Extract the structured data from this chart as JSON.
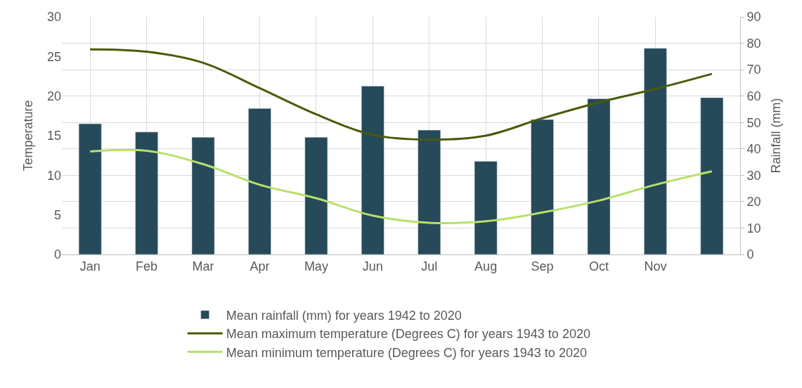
{
  "chart_data": {
    "type": "bar",
    "categories": [
      "Jan",
      "Feb",
      "Mar",
      "Apr",
      "May",
      "Jun",
      "Jul",
      "Aug",
      "Sep",
      "Oct",
      "Nov",
      null
    ],
    "ylabel": "Temperature",
    "y2label": "Rainfall (mm)",
    "ylim": [
      0,
      30
    ],
    "yticks": [
      0,
      5,
      10,
      15,
      20,
      25,
      30
    ],
    "y2lim": [
      0,
      90
    ],
    "y2ticks": [
      0,
      10,
      20,
      30,
      40,
      50,
      60,
      70,
      80,
      90
    ],
    "grid": true,
    "legend": "bottom",
    "series": [
      {
        "name": "Mean rainfall (mm) for years 1942 to 2020",
        "axis": "y2",
        "color": "#264a5a",
        "values": [
          49.5,
          46.4,
          44.4,
          55.3,
          44.4,
          63.8,
          47.1,
          35.3,
          51.1,
          59.0,
          78.1,
          59.4
        ]
      },
      {
        "name": "Mean maximum temperature (Degrees C) for years 1943 to 2020",
        "type": "line",
        "color": "#4a5a0a",
        "values": [
          25.9,
          25.6,
          24.2,
          21.0,
          17.7,
          15.1,
          14.5,
          15.0,
          17.2,
          19.2,
          20.9,
          22.8
        ]
      },
      {
        "name": "Mean minimum temperature (Degrees C) for years 1943 to 2020",
        "type": "line",
        "color": "#b8e06a",
        "values": [
          13.0,
          13.1,
          11.4,
          8.8,
          7.1,
          4.9,
          4.0,
          4.2,
          5.3,
          6.8,
          8.8,
          10.5
        ]
      }
    ]
  }
}
